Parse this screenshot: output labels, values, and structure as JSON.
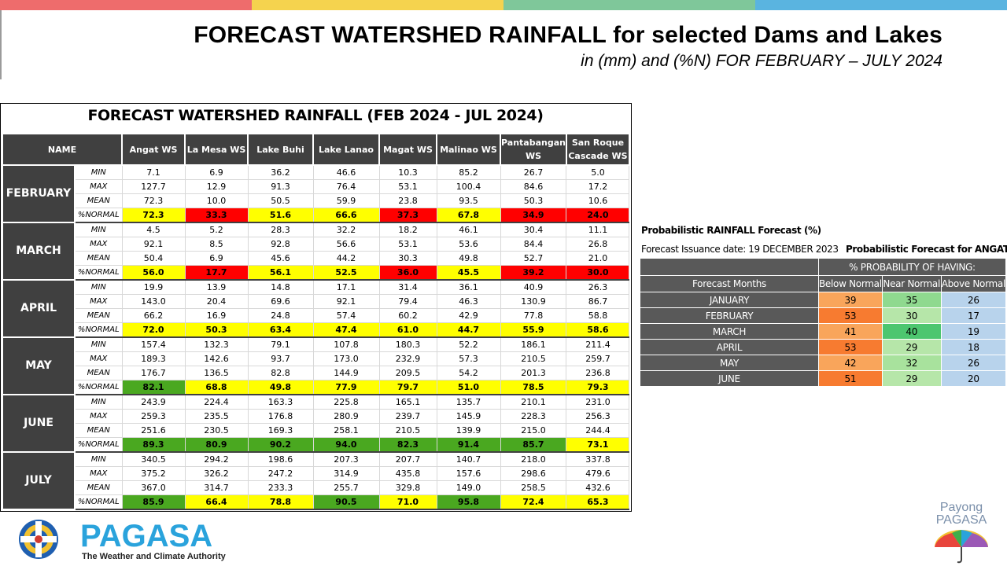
{
  "header": {
    "title": "FORECAST WATERSHED RAINFALL  for selected Dams and Lakes",
    "subtitle": "in (mm) and (%N) FOR FEBRUARY – JULY 2024",
    "band_colors": [
      "#ee6c6c",
      "#f5d34e",
      "#7fc79a",
      "#5ab4e0"
    ]
  },
  "table": {
    "title": "FORECAST WATERSHED RAINFALL (FEB 2024 - JUL 2024)",
    "name_header": "NAME",
    "columns": [
      "Angat WS",
      "La Mesa WS",
      "Lake Buhi",
      "Lake Lanao",
      "Magat WS",
      "Malinao WS",
      "Pantabangan WS",
      "San Roque Cascade WS"
    ],
    "row_labels": [
      "MIN",
      "MAX",
      "MEAN",
      "%NORMAL"
    ],
    "months": [
      {
        "name": "FEBRUARY",
        "min": [
          "7.1",
          "6.9",
          "36.2",
          "46.6",
          "10.3",
          "85.2",
          "26.7",
          "5.0"
        ],
        "max": [
          "127.7",
          "12.9",
          "91.3",
          "76.4",
          "53.1",
          "100.4",
          "84.6",
          "17.2"
        ],
        "mean": [
          "72.3",
          "10.0",
          "50.5",
          "59.9",
          "23.8",
          "93.5",
          "50.3",
          "10.6"
        ],
        "normal": [
          "72.3",
          "33.3",
          "51.6",
          "66.6",
          "37.3",
          "67.8",
          "34.9",
          "24.0"
        ],
        "normal_colors": [
          "#ffff00",
          "#ff0000",
          "#ffff00",
          "#ffff00",
          "#ff0000",
          "#ffff00",
          "#ff0000",
          "#ff0000"
        ]
      },
      {
        "name": "MARCH",
        "min": [
          "4.5",
          "5.2",
          "28.3",
          "32.2",
          "18.2",
          "46.1",
          "30.4",
          "11.1"
        ],
        "max": [
          "92.1",
          "8.5",
          "92.8",
          "56.6",
          "53.1",
          "53.6",
          "84.4",
          "26.8"
        ],
        "mean": [
          "50.4",
          "6.9",
          "45.6",
          "44.2",
          "30.3",
          "49.8",
          "52.7",
          "21.0"
        ],
        "normal": [
          "56.0",
          "17.7",
          "56.1",
          "52.5",
          "36.0",
          "45.5",
          "39.2",
          "30.0"
        ],
        "normal_colors": [
          "#ffff00",
          "#ff0000",
          "#ffff00",
          "#ffff00",
          "#ff0000",
          "#ffff00",
          "#ff0000",
          "#ff0000"
        ]
      },
      {
        "name": "APRIL",
        "min": [
          "19.9",
          "13.9",
          "14.8",
          "17.1",
          "31.4",
          "36.1",
          "40.9",
          "26.3"
        ],
        "max": [
          "143.0",
          "20.4",
          "69.6",
          "92.1",
          "79.4",
          "46.3",
          "130.9",
          "86.7"
        ],
        "mean": [
          "66.2",
          "16.9",
          "24.8",
          "57.4",
          "60.2",
          "42.9",
          "77.8",
          "58.8"
        ],
        "normal": [
          "72.0",
          "50.3",
          "63.4",
          "47.4",
          "61.0",
          "44.7",
          "55.9",
          "58.6"
        ],
        "normal_colors": [
          "#ffff00",
          "#ffff00",
          "#ffff00",
          "#ffff00",
          "#ffff00",
          "#ffff00",
          "#ffff00",
          "#ffff00"
        ]
      },
      {
        "name": "MAY",
        "min": [
          "157.4",
          "132.3",
          "79.1",
          "107.8",
          "180.3",
          "52.2",
          "186.1",
          "211.4"
        ],
        "max": [
          "189.3",
          "142.6",
          "93.7",
          "173.0",
          "232.9",
          "57.3",
          "210.5",
          "259.7"
        ],
        "mean": [
          "176.7",
          "136.5",
          "82.8",
          "144.9",
          "209.5",
          "54.2",
          "201.3",
          "236.8"
        ],
        "normal": [
          "82.1",
          "68.8",
          "49.8",
          "77.9",
          "79.7",
          "51.0",
          "78.5",
          "79.3"
        ],
        "normal_colors": [
          "#4aa820",
          "#ffff00",
          "#ffff00",
          "#ffff00",
          "#ffff00",
          "#ffff00",
          "#ffff00",
          "#ffff00"
        ]
      },
      {
        "name": "JUNE",
        "min": [
          "243.9",
          "224.4",
          "163.3",
          "225.8",
          "165.1",
          "135.7",
          "210.1",
          "231.0"
        ],
        "max": [
          "259.3",
          "235.5",
          "176.8",
          "280.9",
          "239.7",
          "145.9",
          "228.3",
          "256.3"
        ],
        "mean": [
          "251.6",
          "230.5",
          "169.3",
          "258.1",
          "210.5",
          "139.9",
          "215.0",
          "244.4"
        ],
        "normal": [
          "89.3",
          "80.9",
          "90.2",
          "94.0",
          "82.3",
          "91.4",
          "85.7",
          "73.1"
        ],
        "normal_colors": [
          "#4aa820",
          "#4aa820",
          "#4aa820",
          "#4aa820",
          "#4aa820",
          "#4aa820",
          "#4aa820",
          "#ffff00"
        ]
      },
      {
        "name": "JULY",
        "min": [
          "340.5",
          "294.2",
          "198.6",
          "207.3",
          "207.7",
          "140.7",
          "218.0",
          "337.8"
        ],
        "max": [
          "375.2",
          "326.2",
          "247.2",
          "314.9",
          "435.8",
          "157.6",
          "298.6",
          "479.6"
        ],
        "mean": [
          "367.0",
          "314.7",
          "233.3",
          "255.7",
          "329.8",
          "149.0",
          "258.5",
          "432.6"
        ],
        "normal": [
          "85.9",
          "66.4",
          "78.8",
          "90.5",
          "71.0",
          "95.8",
          "72.4",
          "65.3"
        ],
        "normal_colors": [
          "#4aa820",
          "#ffff00",
          "#ffff00",
          "#4aa820",
          "#ffff00",
          "#4aa820",
          "#ffff00",
          "#ffff00"
        ]
      }
    ]
  },
  "prob": {
    "title": "Probabilistic RAINFALL  Forecast (%)",
    "issuance": "Forecast Issuance date: 19 DECEMBER 2023",
    "angat_title": "Probabilistic Forecast for ANGAT",
    "group_header": "% PROBABILITY  OF HAVING:",
    "month_header": "Forecast Months",
    "col_headers": [
      "Below Normal",
      "Near Normal",
      "Above Normal"
    ],
    "rows": [
      {
        "month": "JANUARY",
        "values": [
          "39",
          "35",
          "26"
        ],
        "colors": [
          "#f9a55b",
          "#8fd98f",
          "#b8d3ec"
        ]
      },
      {
        "month": "FEBRUARY",
        "values": [
          "53",
          "30",
          "17"
        ],
        "colors": [
          "#f77b30",
          "#b6e6a9",
          "#b8d3ec"
        ]
      },
      {
        "month": "MARCH",
        "values": [
          "41",
          "40",
          "19"
        ],
        "colors": [
          "#f9a55b",
          "#4dc66f",
          "#b8d3ec"
        ]
      },
      {
        "month": "APRIL",
        "values": [
          "53",
          "29",
          "18"
        ],
        "colors": [
          "#f77b30",
          "#b6e6a9",
          "#b8d3ec"
        ]
      },
      {
        "month": "MAY",
        "values": [
          "42",
          "32",
          "26"
        ],
        "colors": [
          "#f9a55b",
          "#a8e29d",
          "#b8d3ec"
        ]
      },
      {
        "month": "JUNE",
        "values": [
          "51",
          "29",
          "20"
        ],
        "colors": [
          "#f77b30",
          "#b6e6a9",
          "#b8d3ec"
        ]
      }
    ]
  },
  "footer": {
    "logo_text": "PAGASA",
    "logo_tagline": "The Weather and Climate Authority",
    "payong_line1": "Payong",
    "payong_line2": "PAGASA"
  }
}
